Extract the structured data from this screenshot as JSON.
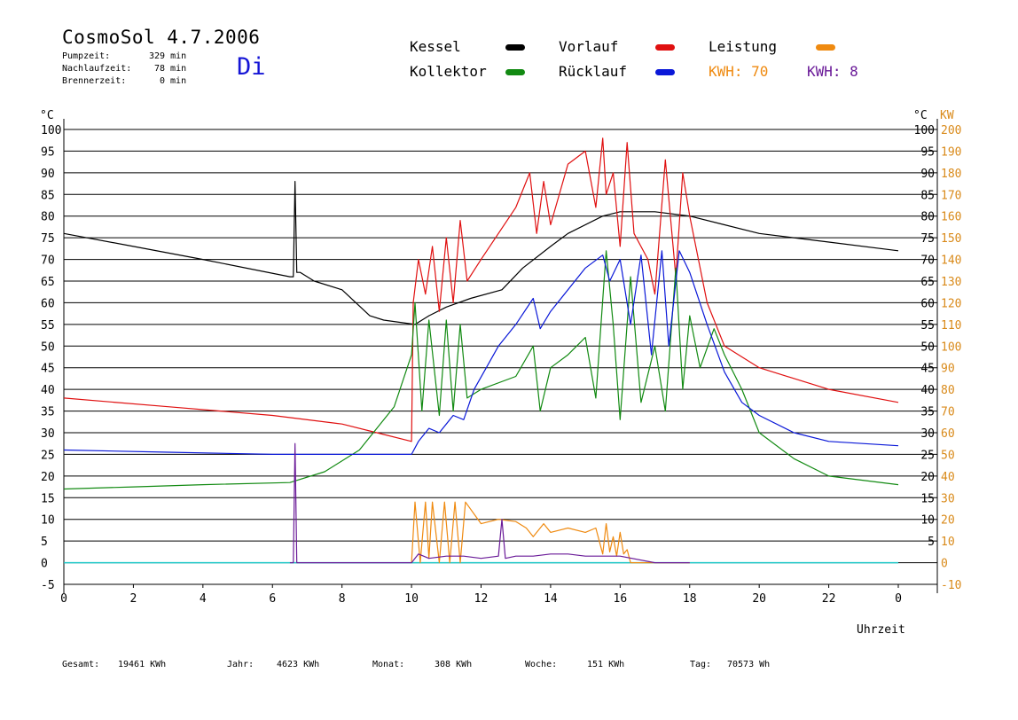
{
  "header": {
    "title": "CosmoSol 4.7.2006",
    "day": "Di",
    "stats": [
      {
        "label": "Pumpzeit:",
        "value": "329 min"
      },
      {
        "label": "Nachlaufzeit:",
        "value": "78 min"
      },
      {
        "label": "Brennerzeit:",
        "value": "0 min"
      }
    ]
  },
  "legend": {
    "kessel": {
      "label": "Kessel",
      "color": "#000000"
    },
    "vorlauf": {
      "label": "Vorlauf",
      "color": "#e01010"
    },
    "leistung": {
      "label": "Leistung",
      "color": "#ef8a10"
    },
    "kollektor": {
      "label": "Kollektor",
      "color": "#128a12"
    },
    "ruecklauf": {
      "label": "Rücklauf",
      "color": "#0a18d8"
    },
    "kwh_orange": "KWH: 70",
    "kwh_purple": "KWH: 8"
  },
  "axes": {
    "left_unit": "°C",
    "right_unit_c": "°C",
    "right_unit_kw": "KW",
    "xlabel": "Uhrzeit"
  },
  "footer": {
    "gesamt": {
      "label": "Gesamt:",
      "value": "19461 KWh"
    },
    "jahr": {
      "label": "Jahr:",
      "value": "4623 KWh"
    },
    "monat": {
      "label": "Monat:",
      "value": "308 KWh"
    },
    "woche": {
      "label": "Woche:",
      "value": "151 KWh"
    },
    "tag": {
      "label": "Tag:",
      "value": "70573 Wh"
    }
  },
  "chart_data": {
    "type": "line",
    "xlabel": "Uhrzeit",
    "ylabel": "°C",
    "y2label": "KW",
    "xlim": [
      0,
      24
    ],
    "ylim": [
      -5,
      100
    ],
    "y2lim": [
      -10,
      200
    ],
    "x_ticks": [
      "0",
      "2",
      "4",
      "6",
      "8",
      "10",
      "12",
      "14",
      "16",
      "18",
      "20",
      "22",
      "0"
    ],
    "y_ticks": [
      -5,
      0,
      5,
      10,
      15,
      20,
      25,
      30,
      35,
      40,
      45,
      50,
      55,
      60,
      65,
      70,
      75,
      80,
      85,
      90,
      95,
      100
    ],
    "y_right_c_ticks": [
      5,
      10,
      15,
      20,
      25,
      30,
      35,
      40,
      45,
      50,
      55,
      60,
      65,
      70,
      75,
      80,
      85,
      90,
      95,
      100
    ],
    "y_right_kw_ticks": [
      -10,
      0,
      10,
      20,
      30,
      40,
      50,
      60,
      70,
      80,
      90,
      100,
      110,
      120,
      130,
      140,
      150,
      160,
      170,
      180,
      190,
      200
    ],
    "grid": true,
    "baseline": {
      "y": 0,
      "color": "#20c8c8"
    },
    "series": [
      {
        "name": "Kessel",
        "color": "#000000",
        "axis": "left",
        "x": [
          0,
          2,
          4,
          6.5,
          6.6,
          6.65,
          6.7,
          6.8,
          7.2,
          8.0,
          8.8,
          9.2,
          10.1,
          10.5,
          11.0,
          11.7,
          12.6,
          13.2,
          14.0,
          14.5,
          15.5,
          16.0,
          17.0,
          18.0,
          19.0,
          20.0,
          22.0,
          24.0
        ],
        "y": [
          76,
          73,
          70,
          66,
          66,
          88,
          67,
          67,
          65,
          63,
          57,
          56,
          55,
          57,
          59,
          61,
          63,
          68,
          73,
          76,
          80,
          81,
          81,
          80,
          78,
          76,
          74,
          72
        ]
      },
      {
        "name": "Vorlauf",
        "color": "#e01010",
        "axis": "left",
        "x": [
          0,
          3,
          6,
          8.0,
          9.0,
          10.0,
          10.05,
          10.2,
          10.4,
          10.6,
          10.8,
          11.0,
          11.2,
          11.4,
          11.6,
          12.0,
          13.0,
          13.4,
          13.6,
          13.8,
          14.0,
          14.5,
          15.0,
          15.3,
          15.5,
          15.6,
          15.8,
          16.0,
          16.2,
          16.4,
          16.8,
          17.0,
          17.3,
          17.6,
          17.8,
          18.0,
          18.5,
          19.0,
          20.0,
          22.0,
          24.0
        ],
        "y": [
          38,
          36,
          34,
          32,
          30,
          28,
          60,
          70,
          62,
          73,
          58,
          75,
          60,
          79,
          65,
          70,
          82,
          90,
          76,
          88,
          78,
          92,
          95,
          82,
          98,
          85,
          90,
          73,
          97,
          76,
          70,
          62,
          93,
          66,
          90,
          80,
          60,
          50,
          45,
          40,
          37
        ]
      },
      {
        "name": "Kollektor",
        "color": "#128a12",
        "axis": "left",
        "x": [
          0,
          2,
          4,
          6.5,
          7.5,
          8.5,
          9.5,
          10.0,
          10.1,
          10.3,
          10.5,
          10.8,
          11.0,
          11.2,
          11.4,
          11.6,
          12.0,
          13.0,
          13.5,
          13.7,
          14.0,
          14.5,
          15.0,
          15.3,
          15.6,
          15.8,
          16.0,
          16.3,
          16.6,
          17.0,
          17.3,
          17.6,
          17.8,
          18.0,
          18.3,
          18.7,
          19.0,
          19.5,
          20.0,
          21.0,
          22.0,
          24.0
        ],
        "y": [
          17,
          17.5,
          18,
          18.5,
          21,
          26,
          36,
          48,
          60,
          35,
          56,
          34,
          56,
          35,
          55,
          38,
          40,
          43,
          50,
          35,
          45,
          48,
          52,
          38,
          72,
          55,
          33,
          66,
          37,
          50,
          35,
          68,
          40,
          57,
          45,
          54,
          48,
          40,
          30,
          24,
          20,
          18
        ]
      },
      {
        "name": "Rücklauf",
        "color": "#0a18d8",
        "axis": "left",
        "x": [
          0,
          3,
          6,
          8,
          10.0,
          10.2,
          10.5,
          10.8,
          11.2,
          11.5,
          11.8,
          12.5,
          13.0,
          13.5,
          13.7,
          14.0,
          15.0,
          15.5,
          15.7,
          16.0,
          16.3,
          16.6,
          16.9,
          17.2,
          17.4,
          17.7,
          18.0,
          18.5,
          19.0,
          19.5,
          20.0,
          21.0,
          22.0,
          24.0
        ],
        "y": [
          26,
          25.5,
          25,
          25,
          25,
          28,
          31,
          30,
          34,
          33,
          40,
          50,
          55,
          61,
          54,
          58,
          68,
          71,
          65,
          70,
          55,
          71,
          48,
          72,
          50,
          72,
          67,
          55,
          44,
          37,
          34,
          30,
          28,
          27
        ]
      },
      {
        "name": "Leistung",
        "color": "#ef8a10",
        "axis": "right",
        "x": [
          10.0,
          10.1,
          10.25,
          10.4,
          10.5,
          10.6,
          10.8,
          10.95,
          11.1,
          11.25,
          11.4,
          11.55,
          12.0,
          12.5,
          13.0,
          13.3,
          13.5,
          13.8,
          14.0,
          14.5,
          15.0,
          15.3,
          15.5,
          15.6,
          15.7,
          15.8,
          15.9,
          16.0,
          16.1,
          16.2,
          16.3,
          16.5,
          16.8,
          17.0,
          17.5,
          18.0
        ],
        "y": [
          0,
          28,
          0,
          28,
          2,
          28,
          0,
          28,
          0,
          28,
          0,
          28,
          18,
          20,
          19,
          16,
          12,
          18,
          14,
          16,
          14,
          16,
          4,
          18,
          5,
          12,
          3,
          14,
          4,
          6,
          0,
          0,
          0,
          0,
          0,
          0
        ]
      },
      {
        "name": "KWH (violett)",
        "color": "#6a1a98",
        "axis": "right",
        "x": [
          6.5,
          6.6,
          6.65,
          6.7,
          7.0,
          10.0,
          10.2,
          10.5,
          11.0,
          11.5,
          12.0,
          12.5,
          12.6,
          12.7,
          13.0,
          13.5,
          14.0,
          14.5,
          15.0,
          16.0,
          17.0,
          18.0
        ],
        "y": [
          0,
          0,
          55,
          0,
          0,
          0,
          4,
          2,
          3,
          3,
          2,
          3,
          20,
          2,
          3,
          3,
          4,
          4,
          3,
          3,
          0,
          0
        ]
      }
    ]
  }
}
